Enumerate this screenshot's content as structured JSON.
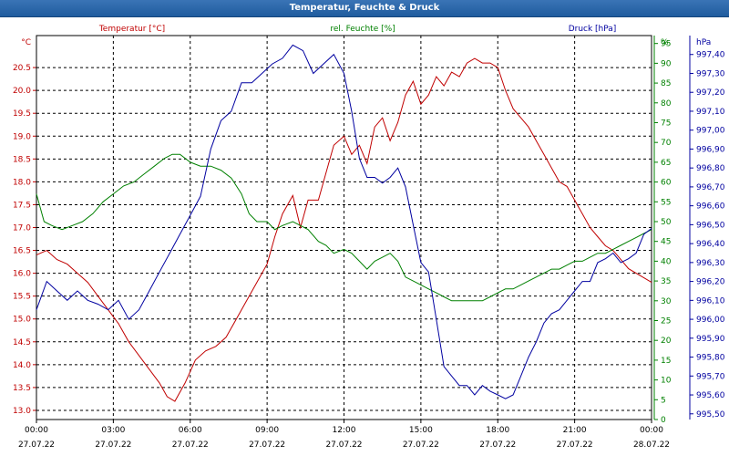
{
  "window": {
    "title": "Temperatur, Feuchte & Druck"
  },
  "colors": {
    "temperature": "#c00000",
    "humidity": "#008000",
    "pressure": "#0000a0",
    "grid": "#000000",
    "axis": "#000000"
  },
  "chart_data": {
    "type": "line",
    "title": "Temperatur, Feuchte & Druck",
    "x": {
      "ticks": [
        {
          "time": "00:00",
          "date": "27.07.22"
        },
        {
          "time": "03:00",
          "date": "27.07.22"
        },
        {
          "time": "06:00",
          "date": "27.07.22"
        },
        {
          "time": "09:00",
          "date": "27.07.22"
        },
        {
          "time": "12:00",
          "date": "27.07.22"
        },
        {
          "time": "15:00",
          "date": "27.07.22"
        },
        {
          "time": "18:00",
          "date": "27.07.22"
        },
        {
          "time": "21:00",
          "date": "27.07.22"
        },
        {
          "time": "00:00",
          "date": "28.07.22"
        }
      ],
      "range_hours": [
        0,
        24
      ]
    },
    "axes": {
      "temperature": {
        "unit": "°C",
        "label": "Temperatur [°C]",
        "ylim": [
          12.8,
          21.2
        ],
        "ticks": [
          "13.0",
          "13.5",
          "14.0",
          "14.5",
          "15.0",
          "15.5",
          "16.0",
          "16.5",
          "17.0",
          "17.5",
          "18.0",
          "18.5",
          "19.0",
          "19.5",
          "20.0",
          "20.5"
        ]
      },
      "humidity": {
        "unit": "%",
        "label": "rel. Feuchte [%]",
        "ylim": [
          0,
          97
        ],
        "ticks": [
          "0",
          "5",
          "10",
          "15",
          "20",
          "25",
          "30",
          "35",
          "40",
          "45",
          "50",
          "55",
          "60",
          "65",
          "70",
          "75",
          "80",
          "85",
          "90",
          "95"
        ]
      },
      "pressure": {
        "unit": "hPa",
        "label": "Druck [hPa]",
        "ylim": [
          995.47,
          997.5
        ],
        "ticks": [
          "995,50",
          "995,60",
          "995,70",
          "995,80",
          "995,90",
          "996,00",
          "996,10",
          "996,20",
          "996,30",
          "996,40",
          "996,50",
          "996,60",
          "996,70",
          "996,80",
          "996,90",
          "997,00",
          "997,10",
          "997,20",
          "997,30",
          "997,40"
        ]
      }
    },
    "grid": true,
    "series": [
      {
        "name": "Temperatur [°C]",
        "axis": "temperature",
        "color": "#c00000",
        "x": [
          0,
          0.4,
          0.8,
          1.2,
          1.6,
          2,
          2.4,
          2.8,
          3.2,
          3.6,
          4,
          4.4,
          4.8,
          5.1,
          5.4,
          5.8,
          6.2,
          6.6,
          7,
          7.4,
          7.8,
          8.2,
          8.6,
          9,
          9.3,
          9.6,
          10,
          10.3,
          10.6,
          11,
          11.3,
          11.6,
          12,
          12.3,
          12.6,
          12.9,
          13.2,
          13.5,
          13.8,
          14.1,
          14.4,
          14.7,
          15,
          15.3,
          15.6,
          15.9,
          16.2,
          16.5,
          16.8,
          17.1,
          17.4,
          17.7,
          18,
          18.3,
          18.6,
          18.9,
          19.2,
          19.5,
          19.8,
          20.1,
          20.4,
          20.7,
          21,
          21.3,
          21.6,
          21.9,
          22.2,
          22.5,
          22.8,
          23.1,
          23.4,
          23.7,
          24
        ],
        "values": [
          16.4,
          16.5,
          16.3,
          16.2,
          16.0,
          15.8,
          15.5,
          15.2,
          14.9,
          14.5,
          14.2,
          13.9,
          13.6,
          13.3,
          13.2,
          13.6,
          14.1,
          14.3,
          14.4,
          14.6,
          15.0,
          15.4,
          15.8,
          16.2,
          16.8,
          17.3,
          17.7,
          17.0,
          17.6,
          17.6,
          18.2,
          18.8,
          19.0,
          18.6,
          18.8,
          18.4,
          19.2,
          19.4,
          18.9,
          19.3,
          19.9,
          20.2,
          19.7,
          19.9,
          20.3,
          20.1,
          20.4,
          20.3,
          20.6,
          20.7,
          20.6,
          20.6,
          20.5,
          20.0,
          19.6,
          19.4,
          19.2,
          18.9,
          18.6,
          18.3,
          18.0,
          17.9,
          17.6,
          17.3,
          17.0,
          16.8,
          16.6,
          16.5,
          16.3,
          16.1,
          16.0,
          15.9,
          15.8
        ]
      },
      {
        "name": "rel. Feuchte [%]",
        "axis": "humidity",
        "color": "#008000",
        "x": [
          0,
          0.3,
          0.6,
          1,
          1.4,
          1.8,
          2.2,
          2.6,
          3,
          3.4,
          3.8,
          4.2,
          4.6,
          5,
          5.3,
          5.6,
          6,
          6.4,
          6.8,
          7.2,
          7.6,
          8,
          8.3,
          8.6,
          9,
          9.3,
          9.6,
          10,
          10.3,
          10.6,
          11,
          11.3,
          11.6,
          12,
          12.3,
          12.6,
          12.9,
          13.2,
          13.5,
          13.8,
          14.1,
          14.4,
          14.7,
          15,
          15.3,
          15.6,
          15.9,
          16.2,
          16.5,
          16.8,
          17.1,
          17.4,
          17.7,
          18,
          18.3,
          18.6,
          18.9,
          19.2,
          19.5,
          19.8,
          20.1,
          20.4,
          20.7,
          21,
          21.3,
          21.6,
          21.9,
          22.2,
          22.5,
          22.8,
          23.1,
          23.4,
          23.7,
          24
        ],
        "values": [
          57,
          50,
          49,
          48,
          49,
          50,
          52,
          55,
          57,
          59,
          60,
          62,
          64,
          66,
          67,
          67,
          65,
          64,
          64,
          63,
          61,
          57,
          52,
          50,
          50,
          48,
          49,
          50,
          49,
          48,
          45,
          44,
          42,
          43,
          42,
          40,
          38,
          40,
          41,
          42,
          40,
          36,
          35,
          34,
          33,
          32,
          31,
          30,
          30,
          30,
          30,
          30,
          31,
          32,
          33,
          33,
          34,
          35,
          36,
          37,
          38,
          38,
          39,
          40,
          40,
          41,
          42,
          42,
          43,
          44,
          45,
          46,
          47,
          48
        ]
      },
      {
        "name": "Druck [hPa]",
        "axis": "pressure",
        "color": "#0000a0",
        "x": [
          0,
          0.4,
          0.8,
          1.2,
          1.6,
          2,
          2.4,
          2.8,
          3.2,
          3.6,
          4,
          4.4,
          4.8,
          5.2,
          5.6,
          6,
          6.4,
          6.8,
          7.2,
          7.6,
          8,
          8.4,
          8.8,
          9.2,
          9.6,
          10,
          10.4,
          10.8,
          11.2,
          11.6,
          12,
          12.3,
          12.6,
          12.9,
          13.2,
          13.5,
          13.8,
          14.1,
          14.4,
          14.7,
          15,
          15.3,
          15.6,
          15.9,
          16.2,
          16.5,
          16.8,
          17.1,
          17.4,
          17.7,
          18,
          18.3,
          18.6,
          18.9,
          19.2,
          19.5,
          19.8,
          20.1,
          20.4,
          20.7,
          21,
          21.3,
          21.6,
          21.9,
          22.2,
          22.5,
          22.8,
          23.1,
          23.4,
          23.7,
          24
        ],
        "values": [
          996.05,
          996.2,
          996.15,
          996.1,
          996.15,
          996.1,
          996.08,
          996.05,
          996.1,
          996.0,
          996.05,
          996.15,
          996.25,
          996.35,
          996.45,
          996.55,
          996.65,
          996.9,
          997.05,
          997.1,
          997.25,
          997.25,
          997.3,
          997.35,
          997.38,
          997.45,
          997.42,
          997.3,
          997.35,
          997.4,
          997.3,
          997.1,
          996.85,
          996.75,
          996.75,
          996.72,
          996.75,
          996.8,
          996.7,
          996.5,
          996.3,
          996.25,
          996.0,
          995.75,
          995.7,
          995.65,
          995.65,
          995.6,
          995.65,
          995.62,
          995.6,
          995.58,
          995.6,
          995.7,
          995.8,
          995.88,
          995.98,
          996.03,
          996.05,
          996.1,
          996.15,
          996.2,
          996.2,
          996.3,
          996.32,
          996.35,
          996.3,
          996.32,
          996.35,
          996.45,
          996.48
        ]
      }
    ]
  }
}
